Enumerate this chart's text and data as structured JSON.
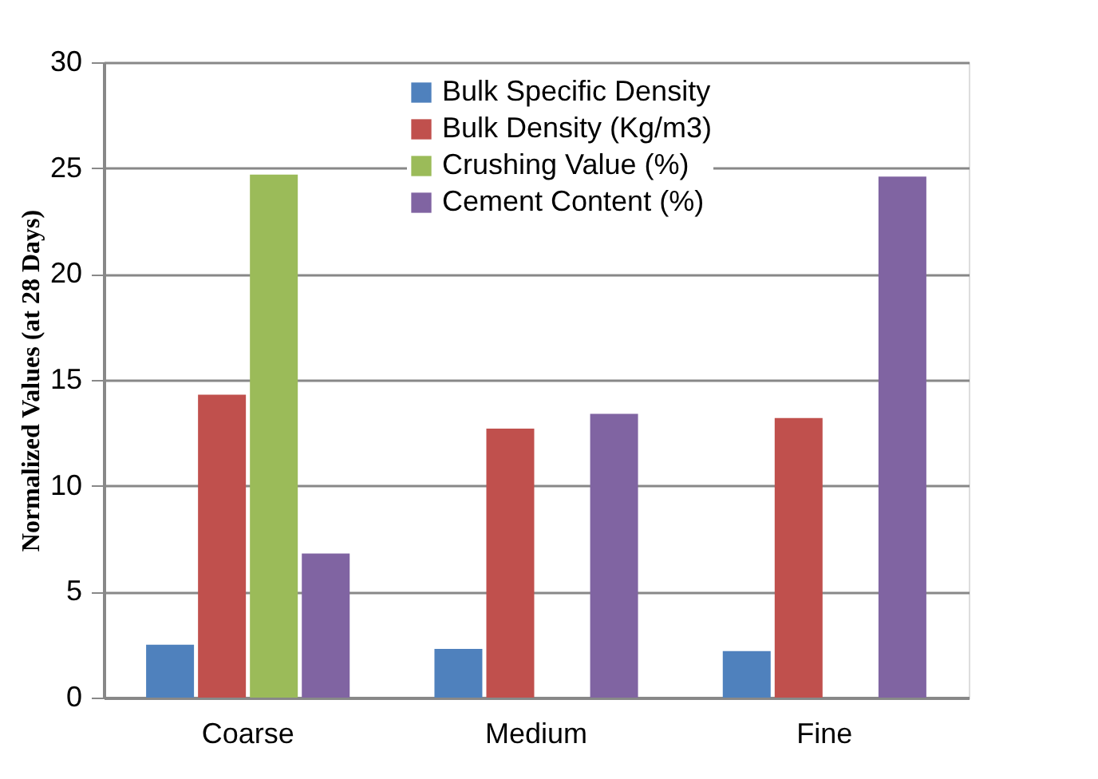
{
  "chart_data": {
    "type": "bar",
    "ylabel": "Normalized Values (at 28 Days)",
    "categories": [
      "Coarse",
      "Medium",
      "Fine"
    ],
    "series": [
      {
        "name": "Bulk Specific Density",
        "color": "#4f81bd",
        "values": [
          2.5,
          2.3,
          2.2
        ]
      },
      {
        "name": "Bulk Density (Kg/m3)",
        "color": "#c0504d",
        "values": [
          14.3,
          12.7,
          13.2
        ]
      },
      {
        "name": "Crushing Value (%)",
        "color": "#9bbb59",
        "values": [
          24.7,
          null,
          null
        ]
      },
      {
        "name": "Cement Content (%)",
        "color": "#8064a2",
        "values": [
          6.8,
          13.4,
          24.6
        ]
      }
    ],
    "ylim": [
      0,
      30
    ],
    "yticks": [
      0,
      5,
      10,
      15,
      20,
      25,
      30
    ],
    "grid": "y",
    "legend": "top"
  }
}
